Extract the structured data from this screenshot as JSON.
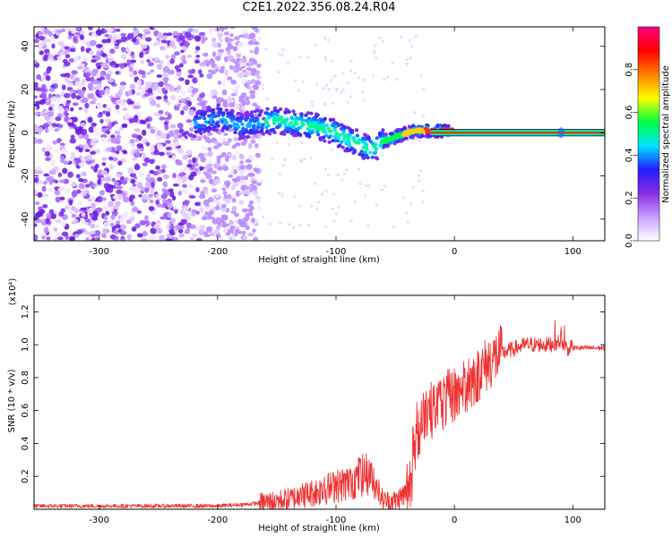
{
  "title": "C2E1.2022.356.08.24.R04",
  "chart_data": [
    {
      "type": "heatmap",
      "xlabel": "Height of straight line (km)",
      "ylabel": "Frequency (Hz)",
      "xlim": [
        -355,
        127
      ],
      "ylim": [
        -50,
        49
      ],
      "x_ticks": [
        -300,
        -200,
        -100,
        0,
        100
      ],
      "y_ticks": [
        -40,
        -20,
        0,
        20,
        40
      ],
      "x_tick_labels": [
        "-300",
        "-200",
        "-100",
        "0",
        "100"
      ],
      "y_tick_labels": [
        "-40",
        "-20",
        "0",
        "20",
        "40"
      ],
      "colorbar": {
        "label": "Normalized spectral amplitude",
        "range": [
          0,
          1
        ],
        "ticks": [
          0.0,
          0.2,
          0.4,
          0.6,
          0.8
        ],
        "tick_labels": [
          "0.0",
          "0.2",
          "0.4",
          "0.6",
          "0.8"
        ],
        "colors": [
          "#ffffff",
          "#c9a0ff",
          "#8a2be2",
          "#2020ff",
          "#00e5ff",
          "#00ff40",
          "#ffff00",
          "#ff8000",
          "#ff0000",
          "#ff0080"
        ]
      },
      "ridge": {
        "x": [
          -220,
          -200,
          -180,
          -160,
          -150,
          -140,
          -130,
          -120,
          -110,
          -100,
          -90,
          -80,
          -70,
          -60,
          -50,
          -40,
          -30,
          -20,
          -10,
          0,
          90,
          127
        ],
        "y": [
          4,
          7,
          3,
          5,
          6,
          5,
          4,
          3,
          2,
          0,
          -3,
          -5,
          -8,
          -4,
          -2,
          0,
          1,
          1,
          1,
          1,
          0,
          0
        ]
      },
      "noise_region": [
        -355,
        -165
      ],
      "grid": false
    },
    {
      "type": "line",
      "xlabel": "Height of straight line (km)",
      "ylabel": "SNR (10 * v/v)",
      "y_multiplier_label": "(x10⁴)",
      "xlim": [
        -355,
        127
      ],
      "ylim": [
        0,
        1.3
      ],
      "x_ticks": [
        -300,
        -200,
        -100,
        0,
        100
      ],
      "y_ticks": [
        0.2,
        0.4,
        0.6,
        0.8,
        1.0,
        1.2
      ],
      "x_tick_labels": [
        "-300",
        "-200",
        "-100",
        "0",
        "100"
      ],
      "y_tick_labels": [
        "0.2",
        "0.4",
        "0.6",
        "0.8",
        "1.0",
        "1.2"
      ],
      "series": [
        {
          "color": "#ee3333",
          "x": [
            -355,
            -300,
            -250,
            -200,
            -175,
            -150,
            -140,
            -130,
            -120,
            -110,
            -100,
            -90,
            -80,
            -70,
            -65,
            -60,
            -50,
            -40,
            -35,
            -30,
            -25,
            -20,
            -10,
            0,
            10,
            20,
            30,
            40,
            60,
            80,
            90,
            95,
            100,
            127
          ],
          "y": [
            0.02,
            0.02,
            0.02,
            0.02,
            0.03,
            0.05,
            0.06,
            0.08,
            0.1,
            0.12,
            0.14,
            0.16,
            0.2,
            0.22,
            0.12,
            0.05,
            0.05,
            0.1,
            0.25,
            0.45,
            0.6,
            0.6,
            0.65,
            0.7,
            0.75,
            0.82,
            0.9,
            0.95,
            1.0,
            1.0,
            1.02,
            0.98,
            0.98,
            0.98
          ],
          "spikes": [
            [
              -150,
              0.1
            ],
            [
              -130,
              0.15
            ],
            [
              -110,
              0.22
            ],
            [
              -100,
              0.22
            ],
            [
              -88,
              0.25
            ],
            [
              -80,
              0.33
            ],
            [
              -74,
              0.38
            ],
            [
              -70,
              0.3
            ],
            [
              -65,
              0.22
            ],
            [
              -40,
              0.28
            ],
            [
              -35,
              0.58
            ],
            [
              -32,
              0.85
            ],
            [
              -28,
              0.7
            ],
            [
              -22,
              0.72
            ],
            [
              -18,
              0.78
            ],
            [
              -12,
              0.85
            ],
            [
              -8,
              0.75
            ],
            [
              5,
              0.98
            ],
            [
              8,
              1.0
            ],
            [
              12,
              0.92
            ],
            [
              20,
              0.95
            ],
            [
              70,
              0.92
            ],
            [
              85,
              1.15
            ],
            [
              90,
              1.28
            ],
            [
              93,
              1.2
            ],
            [
              95,
              0.72
            ],
            [
              98,
              1.1
            ]
          ]
        }
      ],
      "grid": false
    }
  ]
}
